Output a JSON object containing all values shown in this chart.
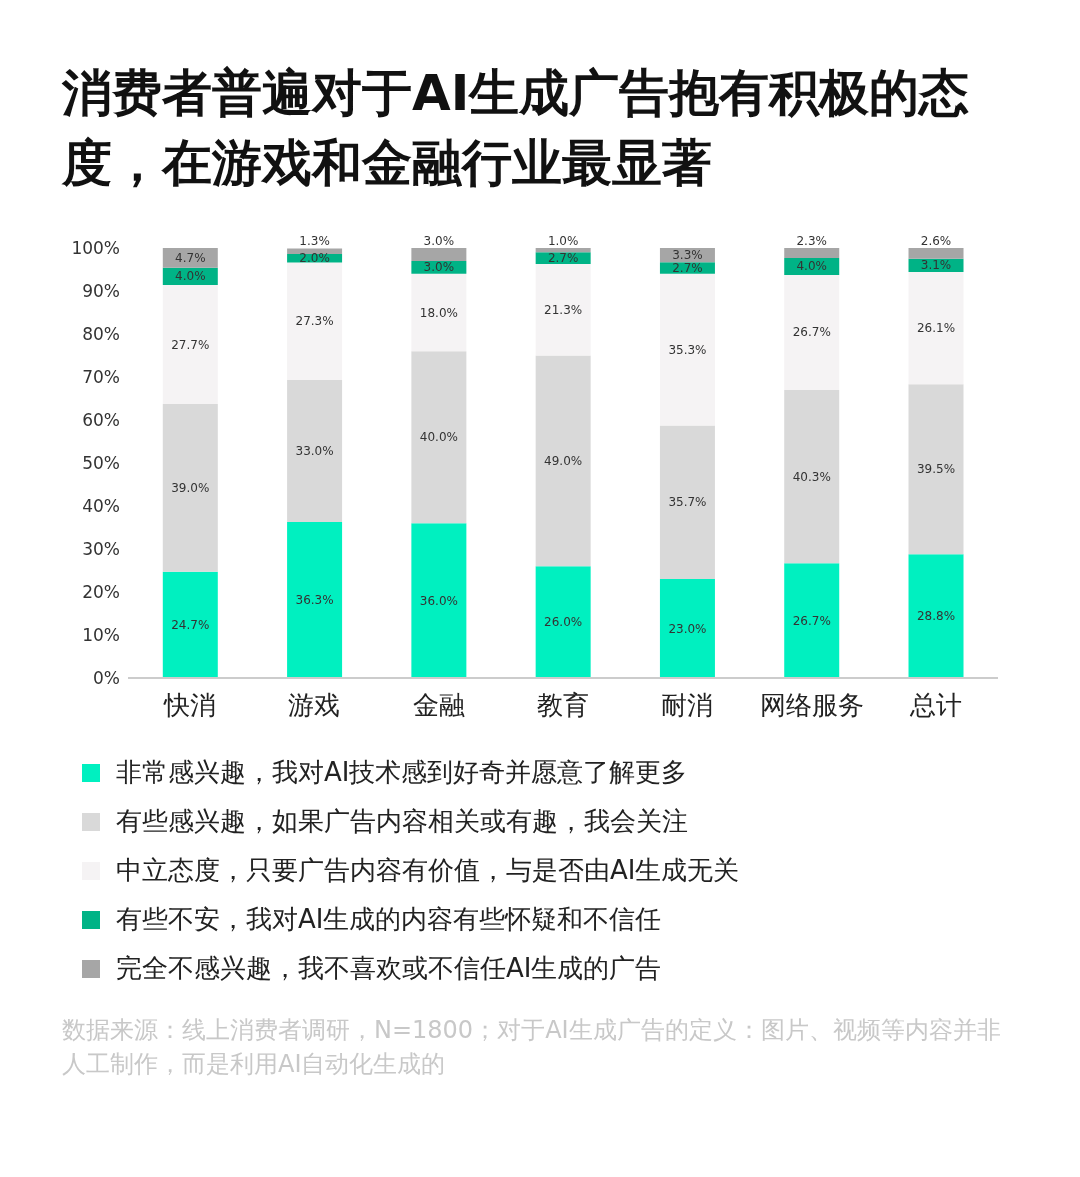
{
  "chart_data": {
    "type": "bar",
    "title": "消费者普遍对于AI生成广告抱有积极的态度，在游戏和金融行业最显著",
    "categories": [
      "快消",
      "游戏",
      "金融",
      "教育",
      "耐消",
      "网络服务",
      "总计"
    ],
    "stacked": true,
    "ylim": [
      0,
      100
    ],
    "yticks": [
      {
        "value": 0,
        "label": "0%"
      },
      {
        "value": 10,
        "label": "10%"
      },
      {
        "value": 20,
        "label": "20%"
      },
      {
        "value": 30,
        "label": "30%"
      },
      {
        "value": 40,
        "label": "40%"
      },
      {
        "value": 50,
        "label": "50%"
      },
      {
        "value": 60,
        "label": "60%"
      },
      {
        "value": 70,
        "label": "70%"
      },
      {
        "value": 80,
        "label": "80%"
      },
      {
        "value": 90,
        "label": "90%"
      },
      {
        "value": 100,
        "label": "100%"
      }
    ],
    "grid": false,
    "legend": "bottom",
    "series": [
      {
        "name": "非常感兴趣，我对AI技术感到好奇并愿意了解更多",
        "color": "#00f0c0",
        "values": [
          24.7,
          36.3,
          36.0,
          26.0,
          23.0,
          26.7,
          28.8
        ],
        "value_labels": [
          "24.7%",
          "36.3%",
          "36.0%",
          "26.0%",
          "23.0%",
          "26.7%",
          "28.8%"
        ]
      },
      {
        "name": "有些感兴趣，如果广告内容相关或有趣，我会关注",
        "color": "#d9d9d9",
        "values": [
          39.0,
          33.0,
          40.0,
          49.0,
          35.7,
          40.3,
          39.5
        ],
        "value_labels": [
          "39.0%",
          "33.0%",
          "40.0%",
          "49.0%",
          "35.7%",
          "40.3%",
          "39.5%"
        ]
      },
      {
        "name": "中立态度，只要广告内容有价值，与是否由AI生成无关",
        "color": "#f5f3f4",
        "values": [
          27.7,
          27.3,
          18.0,
          21.3,
          35.3,
          26.7,
          26.1
        ],
        "value_labels": [
          "27.7%",
          "27.3%",
          "18.0%",
          "21.3%",
          "35.3%",
          "26.7%",
          "26.1%"
        ]
      },
      {
        "name": "有些不安，我对AI生成的内容有些怀疑和不信任",
        "color": "#00b386",
        "values": [
          4.0,
          2.0,
          3.0,
          2.7,
          2.7,
          4.0,
          3.1
        ],
        "value_labels": [
          "4.0%",
          "2.0%",
          "3.0%",
          "2.7%",
          "2.7%",
          "4.0%",
          "3.1%"
        ]
      },
      {
        "name": "完全不感兴趣，我不喜欢或不信任AI生成的广告",
        "color": "#a6a6a6",
        "values": [
          4.7,
          1.3,
          3.0,
          1.0,
          3.3,
          2.3,
          2.6
        ],
        "value_labels": [
          "4.7%",
          "1.3%",
          "3.0%",
          "1.0%",
          "3.3%",
          "2.3%",
          "2.6%"
        ]
      }
    ],
    "annotations": [
      "数据来源：线上消费者调研，N=1800；对于AI生成广告的定义：图片、视频等内容并非人工制作，而是利用AI自动化生成的"
    ]
  }
}
